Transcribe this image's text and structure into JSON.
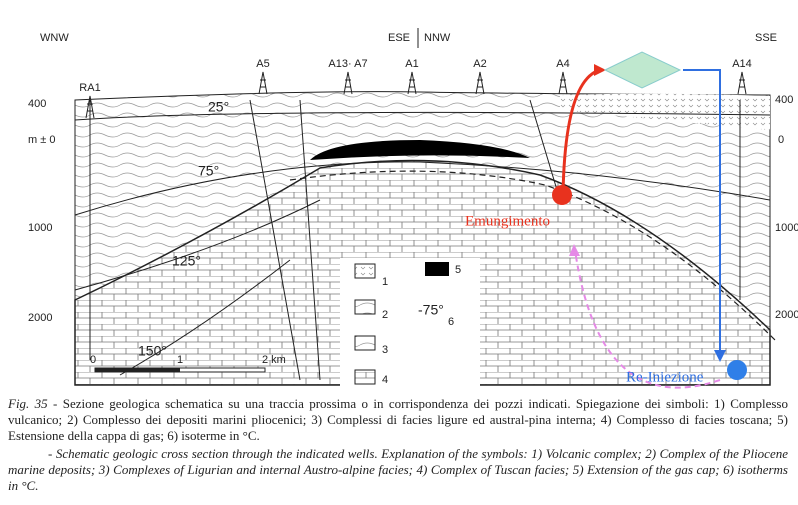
{
  "headers": {
    "left": "WNW",
    "center_left": "ESE",
    "center_right": "NNW",
    "right": "SSE"
  },
  "wells": [
    "RA1",
    "A5",
    "A13· A7",
    "A1",
    "A2",
    "A4",
    "A14"
  ],
  "depth_left": [
    "400",
    "m ± 0",
    "1000",
    "2000"
  ],
  "depth_right": [
    "400",
    "0",
    "1000",
    "2000"
  ],
  "isotherms": [
    "25°",
    "75°",
    "125°",
    "150°"
  ],
  "scale": [
    "0",
    "1",
    "2 km"
  ],
  "legend": [
    "1",
    "2",
    "3",
    "4",
    "5",
    "6",
    "-75°"
  ],
  "annotations": {
    "extraction": "Emungimento",
    "reinjection": "Re-Iniezione"
  },
  "caption": {
    "label": "Fig. 35",
    "italian": " - Sezione geologica schematica su una traccia prossima o in corrispondenza dei pozzi indicati. Spiegazione dei simboli: 1) Complesso vulcanico; 2) Complesso dei depositi marini pliocenici; 3) Complessi di facies ligure ed austral-pina interna; 4) Complesso di facies toscana; 5) Estensione della cappa di gas; 6) isoterme in °C.",
    "english": "- Schematic geologic cross section through the indicated wells. Explanation of the symbols: 1) Volcanic complex; 2) Complex of the Pliocene marine deposits; 3) Complexes of Ligurian and internal Austro-alpine facies; 4) Complex of Tuscan facies; 5) Extension of the gas cap; 6) isotherms in °C."
  }
}
